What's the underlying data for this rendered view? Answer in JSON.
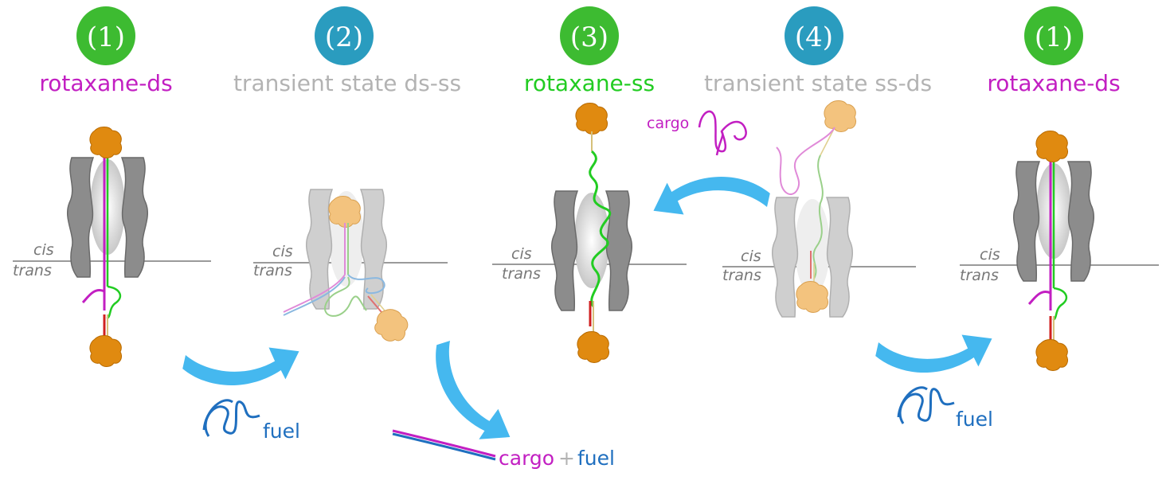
{
  "colors": {
    "green_badge": "#3dbb31",
    "teal_badge": "#2a9cbf",
    "magenta": "#c21fc2",
    "green_text": "#22cc22",
    "grey_text": "#b3b3b3",
    "arrow": "#45b8ef",
    "fuel_blue": "#1f6fbf",
    "pore_dark": "#8c8c8c",
    "pore_light": "#d6d6d6",
    "stopper": "#e08a10",
    "stopper_light": "#f3c37e"
  },
  "stages": [
    {
      "number": "(1)",
      "label": "rotaxane-ds"
    },
    {
      "number": "(2)",
      "label": "transient state ds-ss"
    },
    {
      "number": "(3)",
      "label": "rotaxane-ss"
    },
    {
      "number": "(4)",
      "label": "transient state ss-ds"
    },
    {
      "number": "(1)",
      "label": "rotaxane-ds"
    }
  ],
  "membrane": {
    "cis": "cis",
    "trans": "trans"
  },
  "annotations": {
    "fuel_1": "fuel",
    "fuel_2": "fuel",
    "cargo_in": "cargo",
    "product_cargo": "cargo",
    "product_plus": "+",
    "product_fuel": "fuel"
  },
  "icons": {
    "arrow": "curved-arrow-icon",
    "stopper": "protein-stopper-icon",
    "pore": "nanopore-icon",
    "strand": "dna-strand-icon"
  }
}
